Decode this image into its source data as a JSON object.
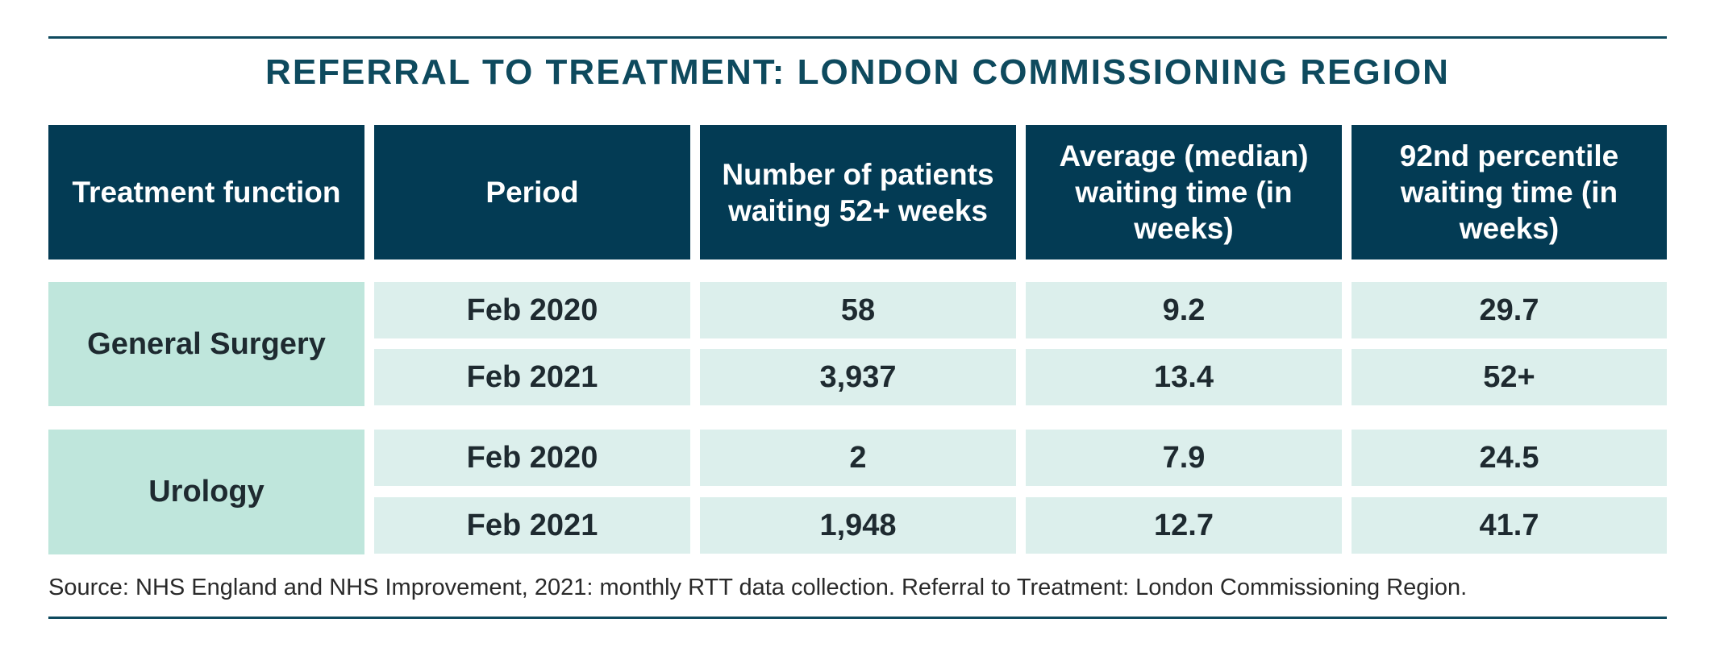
{
  "title": "REFERRAL TO TREATMENT: LONDON COMMISSIONING REGION",
  "chart_data": {
    "type": "table",
    "columns": [
      "Treatment function",
      "Period",
      "Number of patients waiting 52+ weeks",
      "Average (median) waiting time (in weeks)",
      "92nd percentile waiting time (in weeks)"
    ],
    "groups": [
      {
        "function": "General Surgery",
        "rows": [
          {
            "period": "Feb 2020",
            "patients_52_weeks": "58",
            "median_wait": "9.2",
            "p92_wait": "29.7"
          },
          {
            "period": "Feb 2021",
            "patients_52_weeks": "3,937",
            "median_wait": "13.4",
            "p92_wait": "52+"
          }
        ]
      },
      {
        "function": "Urology",
        "rows": [
          {
            "period": "Feb 2020",
            "patients_52_weeks": "2",
            "median_wait": "7.9",
            "p92_wait": "24.5"
          },
          {
            "period": "Feb 2021",
            "patients_52_weeks": "1,948",
            "median_wait": "12.7",
            "p92_wait": "41.7"
          }
        ]
      }
    ]
  },
  "source": "Source: NHS England and NHS Improvement, 2021: monthly RTT data collection. Referral to Treatment: London Commissioning Region.",
  "colors": {
    "header_bg": "#033b54",
    "title_text": "#0e4a5e",
    "function_bg": "#bfe6dc",
    "cell_bg": "#dcefec"
  }
}
